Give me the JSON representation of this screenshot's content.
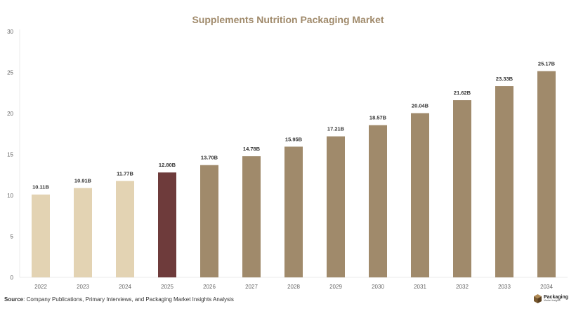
{
  "source": {
    "label": "Source",
    "text": ": Company Publications, Primary Interviews, and Packaging Market Insights Analysis"
  },
  "logo": {
    "name": "Packaging",
    "sub": "Market Insights"
  },
  "colors": {
    "title": "#a08a6b",
    "historical": "#e3d3b3",
    "base_year": "#6e3b3b",
    "forecast": "#a08a6b",
    "grid": "#ebebeb",
    "axis_text": "#666666",
    "data_label": "#333333"
  },
  "chart_data": {
    "type": "bar",
    "title": "Supplements Nutrition Packaging Market",
    "xlabel": "",
    "ylabel": "",
    "ylim": [
      0,
      30
    ],
    "yticks": [
      0,
      5,
      10,
      15,
      20,
      25,
      30
    ],
    "grid": false,
    "categories": [
      "2022",
      "2023",
      "2024",
      "2025",
      "2026",
      "2027",
      "2028",
      "2029",
      "2030",
      "2031",
      "2032",
      "2033",
      "2034"
    ],
    "values": [
      10.11,
      10.91,
      11.77,
      12.8,
      13.7,
      14.78,
      15.95,
      17.21,
      18.57,
      20.04,
      21.62,
      23.33,
      25.17
    ],
    "labels": [
      "10.11B",
      "10.91B",
      "11.77B",
      "12.80B",
      "13.70B",
      "14.78B",
      "15.95B",
      "17.21B",
      "18.57B",
      "20.04B",
      "21.62B",
      "23.33B",
      "25.17B"
    ],
    "bar_colors": [
      "historical",
      "historical",
      "historical",
      "base_year",
      "forecast",
      "forecast",
      "forecast",
      "forecast",
      "forecast",
      "forecast",
      "forecast",
      "forecast",
      "forecast"
    ]
  }
}
